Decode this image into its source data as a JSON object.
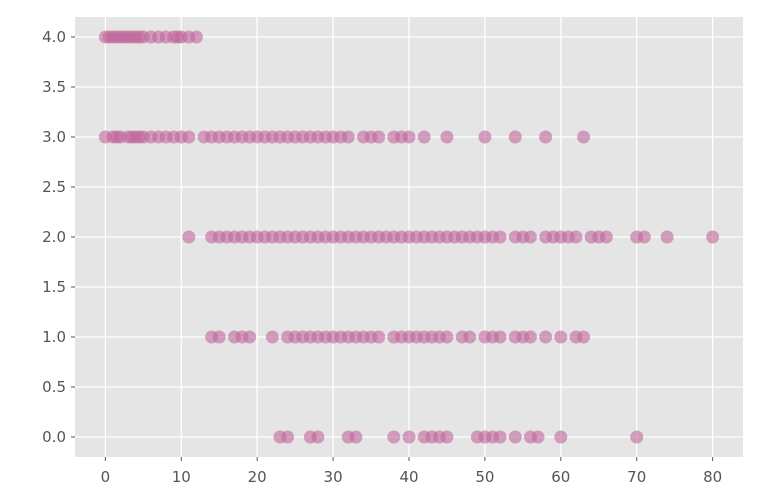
{
  "chart_data": {
    "type": "scatter",
    "title": "",
    "xlabel": "",
    "ylabel": "",
    "xlim": [
      -4,
      84
    ],
    "ylim": [
      -0.2,
      4.2
    ],
    "xticks": [
      0,
      10,
      20,
      30,
      40,
      50,
      60,
      70,
      80
    ],
    "yticks": [
      0.0,
      0.5,
      1.0,
      1.5,
      2.0,
      2.5,
      3.0,
      3.5,
      4.0
    ],
    "xtick_labels": [
      "0",
      "10",
      "20",
      "30",
      "40",
      "50",
      "60",
      "70",
      "80"
    ],
    "ytick_labels": [
      "0.0",
      "0.5",
      "1.0",
      "1.5",
      "2.0",
      "2.5",
      "3.0",
      "3.5",
      "4.0"
    ],
    "grid": true,
    "background": "#e5e5e5",
    "point_color": "#c0679b",
    "point_alpha": 0.6,
    "series": [
      {
        "y": 4,
        "x": [
          0,
          0.5,
          1,
          1.5,
          2,
          2.5,
          3,
          3.5,
          4,
          4.5,
          5,
          6,
          7,
          8,
          9,
          9.5,
          10,
          11,
          12
        ]
      },
      {
        "y": 3,
        "x": [
          0,
          1,
          1.5,
          2,
          3,
          3.5,
          4,
          4.5,
          5,
          6,
          7,
          8,
          9,
          10,
          11,
          13,
          14,
          15,
          16,
          17,
          18,
          19,
          20,
          21,
          22,
          23,
          24,
          25,
          26,
          27,
          28,
          29,
          30,
          31,
          32,
          34,
          35,
          36,
          38,
          39,
          40,
          42,
          45,
          50,
          54,
          58,
          63
        ]
      },
      {
        "y": 2,
        "x": [
          11,
          14,
          15,
          16,
          17,
          18,
          19,
          20,
          21,
          22,
          23,
          24,
          25,
          26,
          27,
          28,
          29,
          30,
          31,
          32,
          33,
          34,
          35,
          36,
          37,
          38,
          39,
          40,
          41,
          42,
          43,
          44,
          45,
          46,
          47,
          48,
          49,
          50,
          51,
          52,
          54,
          55,
          56,
          58,
          59,
          60,
          61,
          62,
          64,
          65,
          66,
          70,
          71,
          74,
          80
        ]
      },
      {
        "y": 1,
        "x": [
          14,
          15,
          17,
          18,
          19,
          22,
          24,
          25,
          26,
          27,
          28,
          29,
          30,
          31,
          32,
          33,
          34,
          35,
          36,
          38,
          39,
          40,
          41,
          42,
          43,
          44,
          45,
          47,
          48,
          50,
          51,
          52,
          54,
          55,
          56,
          58,
          60,
          62,
          63
        ]
      },
      {
        "y": 0,
        "x": [
          23,
          24,
          27,
          28,
          32,
          33,
          38,
          40,
          42,
          43,
          44,
          45,
          49,
          50,
          51,
          52,
          54,
          56,
          57,
          60,
          70
        ]
      }
    ]
  }
}
